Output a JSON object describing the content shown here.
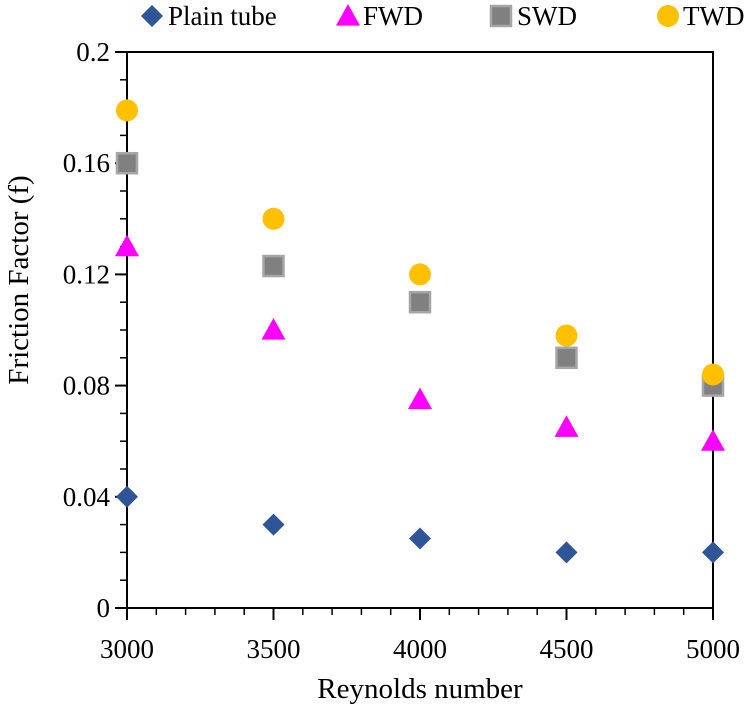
{
  "chart_data": {
    "type": "scatter",
    "title": "",
    "xlabel": "Reynolds number",
    "ylabel": "Friction Factor (f)",
    "xlim": [
      3000,
      5000
    ],
    "ylim": [
      0,
      0.2
    ],
    "x_ticks": [
      "3000",
      "3500",
      "4000",
      "4500",
      "5000"
    ],
    "y_ticks": [
      "0",
      "0.04",
      "0.08",
      "0.12",
      "0.16",
      "0.2"
    ],
    "legend_position": "top",
    "grid": false,
    "series": [
      {
        "name": "Plain tube",
        "marker": "diamond",
        "color": "#2F5597",
        "x": [
          3000,
          3500,
          4000,
          4500,
          5000
        ],
        "y": [
          0.04,
          0.03,
          0.025,
          0.02,
          0.02
        ]
      },
      {
        "name": "FWD",
        "marker": "triangle",
        "color": "#FF00FF",
        "x": [
          3000,
          3500,
          4000,
          4500,
          5000
        ],
        "y": [
          0.13,
          0.1,
          0.075,
          0.065,
          0.06
        ]
      },
      {
        "name": "SWD",
        "marker": "square",
        "color": "#808080",
        "x": [
          3000,
          3500,
          4000,
          4500,
          5000
        ],
        "y": [
          0.16,
          0.123,
          0.11,
          0.09,
          0.08
        ]
      },
      {
        "name": "TWD",
        "marker": "circle",
        "color": "#FFC000",
        "x": [
          3000,
          3500,
          4000,
          4500,
          5000
        ],
        "y": [
          0.179,
          0.14,
          0.12,
          0.098,
          0.084
        ]
      }
    ]
  }
}
